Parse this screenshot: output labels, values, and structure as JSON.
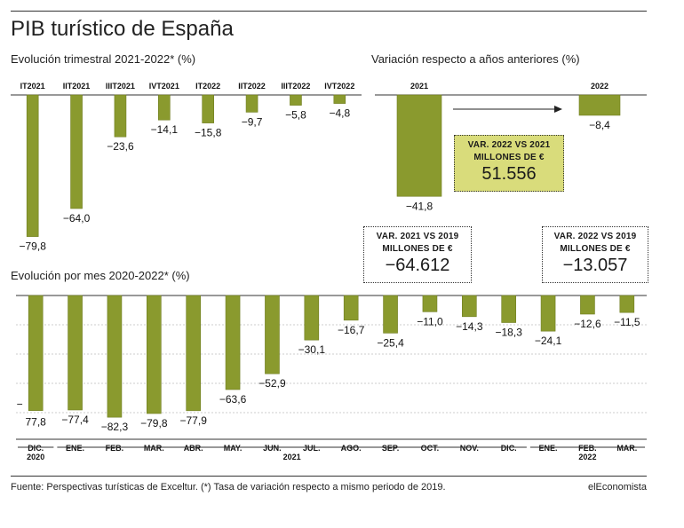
{
  "title": "PIB turístico de España",
  "colors": {
    "bar": "#8a9a2e",
    "bar_stroke": "#6f7d1f",
    "highlight_box": "#d9dc7b",
    "axis": "#333333",
    "grid": "#9a9a9a"
  },
  "quarterly": {
    "subtitle": "Evolución trimestral 2021-2022* (%)",
    "chart_data": {
      "type": "bar",
      "categories": [
        "IT2021",
        "IIT2021",
        "IIIT2021",
        "IVT2021",
        "IT2022",
        "IIT2022",
        "IIIT2022",
        "IVT2022"
      ],
      "values": [
        -79.8,
        -64.0,
        -23.6,
        -14.1,
        -15.8,
        -9.7,
        -5.8,
        -4.8
      ],
      "value_labels": [
        "−79,8",
        "−64,0",
        "−23,6",
        "−14,1",
        "−15,8",
        "−9,7",
        "−5,8",
        "−4,8"
      ],
      "ylim": [
        -85,
        0
      ]
    }
  },
  "variation": {
    "subtitle": "Variación respecto a años anteriores (%)",
    "chart_data": {
      "type": "bar",
      "categories": [
        "2021",
        "2022"
      ],
      "values": [
        -41.8,
        -8.4
      ],
      "value_labels": [
        "−41,8",
        "−8,4"
      ],
      "ylim": [
        -45,
        0
      ]
    },
    "notes": {
      "var_2022_2021": {
        "line1": "VAR. 2022 VS 2021",
        "line2": "MILLONES DE €",
        "value": "51.556"
      },
      "var_2021_2019": {
        "line1": "VAR. 2021 VS 2019",
        "line2": "MILLONES DE €",
        "value": "−64.612"
      },
      "var_2022_2019": {
        "line1": "VAR. 2022 VS 2019",
        "line2": "MILLONES DE €",
        "value": "−13.057"
      }
    }
  },
  "monthly": {
    "subtitle": "Evolución por mes 2020-2022* (%)",
    "chart_data": {
      "type": "bar",
      "categories": [
        "DIC.",
        "ENE.",
        "FEB.",
        "MAR.",
        "ABR.",
        "MAY.",
        "JUN.",
        "JUL.",
        "AGO.",
        "SEP.",
        "OCT.",
        "NOV.",
        "DIC.",
        "ENE.",
        "FEB.",
        "MAR."
      ],
      "values": [
        -77.8,
        -77.4,
        -82.3,
        -79.8,
        -77.9,
        -63.6,
        -52.9,
        -30.1,
        -16.7,
        -25.4,
        -11.0,
        -14.3,
        -18.3,
        -24.1,
        -12.6,
        -11.5
      ],
      "value_labels": [
        "−\n77,8",
        "−77,4",
        "−82,3",
        "−79,8",
        "−77,9",
        "−63,6",
        "−52,9",
        "−30,1",
        "−16,7",
        "−25,4",
        "−11,0",
        "−14,3",
        "−18,3",
        "−24,1",
        "−12,6",
        "−11,5"
      ],
      "ylim": [
        -87,
        0
      ],
      "grid": true,
      "year_groups": [
        {
          "label": "2020",
          "start": 0,
          "end": 0
        },
        {
          "label": "2021",
          "start": 1,
          "end": 12
        },
        {
          "label": "2022",
          "start": 13,
          "end": 15
        }
      ]
    }
  },
  "footer": {
    "source": "Fuente: Perspectivas turísticas de Excelt­ur. (*) Tasa de variación respecto a mismo periodo de 2019.",
    "brand": "elEconomista"
  }
}
